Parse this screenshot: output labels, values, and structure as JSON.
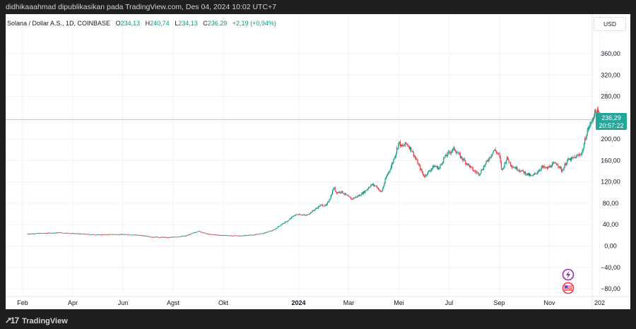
{
  "publisher_line": "didhikaaahmad dipublikasikan pada TradingView.com, Des 04, 2024 10:02 UTC+7",
  "legend": {
    "symbol": "Solana / Dollar A.S., 1D, COINBASE",
    "o_label": "O",
    "o": "234,13",
    "h_label": "H",
    "h": "240,74",
    "l_label": "L",
    "l": "234,13",
    "c_label": "C",
    "c": "236,29",
    "change": "+2,19 (+0,94%)"
  },
  "currency": "USD",
  "last_price": {
    "price": "236,29",
    "countdown": "20:57:22"
  },
  "brand": "TradingView",
  "colors": {
    "up": "#089981",
    "down": "#f23645",
    "accent": "#26a69a",
    "event_purple": "#9c27b0"
  },
  "event_icons": [
    "lightning-icon",
    "us-flag-icon"
  ],
  "chart_data": {
    "type": "candlestick",
    "title": "Solana / Dollar A.S., 1D, COINBASE",
    "ylim": [
      -95,
      380
    ],
    "y_ticks": [
      "360,00",
      "320,00",
      "280,00",
      "240,00",
      "200,00",
      "160,00",
      "120,00",
      "80,00",
      "40,00",
      "0,00",
      "−40,00",
      "−80,00"
    ],
    "y_tick_values": [
      360,
      320,
      280,
      240,
      200,
      160,
      120,
      80,
      40,
      0,
      -40,
      -80
    ],
    "x_ticks": [
      "Feb",
      "Apr",
      "Jun",
      "Agst",
      "Okt",
      "2024",
      "Mar",
      "Mei",
      "Jul",
      "Sep",
      "Nov",
      "202"
    ],
    "x_tick_months": [
      1,
      3,
      5,
      7,
      9,
      12,
      14,
      16,
      18,
      20,
      22,
      24
    ],
    "x_tick_bold": [
      false,
      false,
      false,
      false,
      false,
      true,
      false,
      false,
      false,
      false,
      false,
      false
    ],
    "x_start_month": 0.15,
    "x_end_month": 25.0,
    "series": [
      {
        "name": "SOL/USD",
        "points": [
          [
            0.2,
            23
          ],
          [
            0.8,
            24
          ],
          [
            1.5,
            25
          ],
          [
            2.2,
            23
          ],
          [
            3.0,
            21
          ],
          [
            3.8,
            22
          ],
          [
            4.5,
            21
          ],
          [
            5.2,
            17
          ],
          [
            5.8,
            16
          ],
          [
            6.5,
            19
          ],
          [
            7.0,
            28
          ],
          [
            7.4,
            22
          ],
          [
            8.0,
            20
          ],
          [
            8.6,
            19
          ],
          [
            9.2,
            21
          ],
          [
            9.6,
            24
          ],
          [
            10.0,
            30
          ],
          [
            10.3,
            40
          ],
          [
            10.6,
            48
          ],
          [
            10.8,
            57
          ],
          [
            11.0,
            60
          ],
          [
            11.3,
            57
          ],
          [
            11.6,
            67
          ],
          [
            11.9,
            77
          ],
          [
            12.1,
            75
          ],
          [
            12.3,
            95
          ],
          [
            12.4,
            110
          ],
          [
            12.5,
            100
          ],
          [
            12.7,
            102
          ],
          [
            12.9,
            95
          ],
          [
            13.1,
            88
          ],
          [
            13.3,
            92
          ],
          [
            13.5,
            97
          ],
          [
            13.7,
            105
          ],
          [
            13.9,
            115
          ],
          [
            14.1,
            112
          ],
          [
            14.3,
            100
          ],
          [
            14.5,
            130
          ],
          [
            14.7,
            150
          ],
          [
            14.9,
            178
          ],
          [
            15.0,
            195
          ],
          [
            15.1,
            185
          ],
          [
            15.3,
            192
          ],
          [
            15.5,
            180
          ],
          [
            15.7,
            160
          ],
          [
            15.9,
            140
          ],
          [
            16.0,
            130
          ],
          [
            16.2,
            140
          ],
          [
            16.4,
            150
          ],
          [
            16.6,
            145
          ],
          [
            16.8,
            165
          ],
          [
            17.0,
            175
          ],
          [
            17.2,
            182
          ],
          [
            17.4,
            170
          ],
          [
            17.6,
            160
          ],
          [
            17.8,
            150
          ],
          [
            18.0,
            140
          ],
          [
            18.2,
            135
          ],
          [
            18.4,
            150
          ],
          [
            18.6,
            165
          ],
          [
            18.8,
            180
          ],
          [
            19.0,
            170
          ],
          [
            19.1,
            140
          ],
          [
            19.3,
            165
          ],
          [
            19.5,
            150
          ],
          [
            19.7,
            145
          ],
          [
            19.9,
            140
          ],
          [
            20.1,
            135
          ],
          [
            20.3,
            130
          ],
          [
            20.5,
            138
          ],
          [
            20.7,
            148
          ],
          [
            20.9,
            145
          ],
          [
            21.1,
            152
          ],
          [
            21.3,
            155
          ],
          [
            21.5,
            140
          ],
          [
            21.7,
            160
          ],
          [
            21.9,
            163
          ],
          [
            22.1,
            168
          ],
          [
            22.3,
            175
          ],
          [
            22.5,
            215
          ],
          [
            22.7,
            235
          ],
          [
            22.8,
            250
          ],
          [
            22.9,
            252
          ],
          [
            23.0,
            245
          ],
          [
            23.2,
            230
          ],
          [
            23.4,
            236
          ]
        ]
      }
    ]
  }
}
